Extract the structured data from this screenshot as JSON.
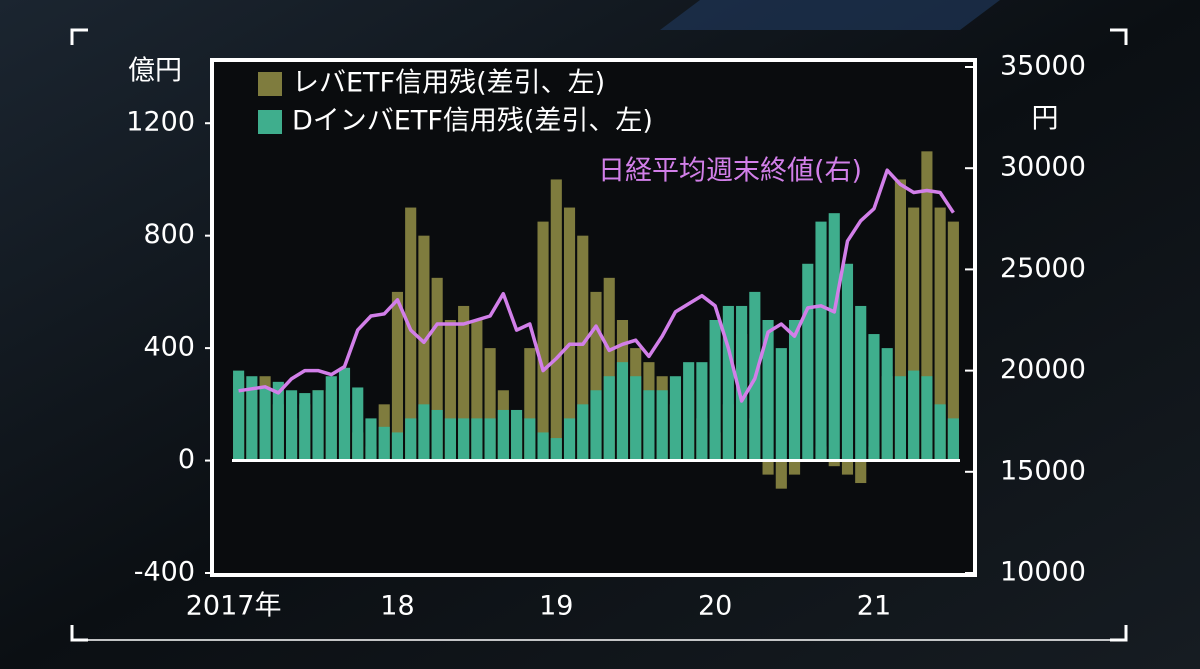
{
  "chart_data": {
    "type": "bar",
    "left_unit": "億円",
    "right_unit": "円",
    "categories": [
      "2017年",
      null,
      null,
      null,
      null,
      null,
      null,
      null,
      null,
      null,
      null,
      null,
      "18",
      null,
      null,
      null,
      null,
      null,
      null,
      null,
      null,
      null,
      null,
      null,
      "19",
      null,
      null,
      null,
      null,
      null,
      null,
      null,
      null,
      null,
      null,
      null,
      "20",
      null,
      null,
      null,
      null,
      null,
      null,
      null,
      null,
      null,
      null,
      null,
      "21",
      null,
      null,
      null,
      null,
      null,
      null
    ],
    "series": [
      {
        "name": "レバETF信用残(差引、左)",
        "color": "#7f7c3e",
        "values": [
          300,
          250,
          300,
          200,
          150,
          200,
          250,
          250,
          200,
          100,
          50,
          200,
          600,
          900,
          800,
          650,
          500,
          550,
          500,
          400,
          250,
          150,
          400,
          850,
          1000,
          900,
          800,
          600,
          650,
          500,
          400,
          350,
          300,
          200,
          250,
          150,
          100,
          200,
          450,
          150,
          -50,
          -100,
          -50,
          0,
          50,
          -20,
          -50,
          -80,
          50,
          300,
          1000,
          900,
          1100,
          900,
          850
        ]
      },
      {
        "name": "DインバETF信用残(差引、左)",
        "color": "#3fae8d",
        "values": [
          320,
          300,
          260,
          280,
          250,
          240,
          250,
          300,
          330,
          260,
          150,
          120,
          100,
          150,
          200,
          180,
          150,
          150,
          150,
          150,
          180,
          180,
          150,
          100,
          80,
          150,
          200,
          250,
          300,
          350,
          300,
          250,
          250,
          300,
          350,
          350,
          500,
          550,
          550,
          600,
          500,
          400,
          500,
          700,
          850,
          880,
          700,
          550,
          450,
          400,
          300,
          320,
          300,
          200,
          150
        ]
      },
      {
        "name": "日経平均週末終値(右)",
        "color": "#d27fe9",
        "axis": "y2",
        "type": "line",
        "values": [
          19000,
          19100,
          19200,
          18900,
          19600,
          20000,
          20000,
          19800,
          20200,
          22000,
          22700,
          22800,
          23500,
          22000,
          21400,
          22300,
          22300,
          22300,
          22500,
          22700,
          23800,
          22000,
          22300,
          20000,
          20600,
          21300,
          21300,
          22200,
          21000,
          21300,
          21500,
          20700,
          21700,
          22900,
          23300,
          23700,
          23200,
          21100,
          18500,
          19600,
          21900,
          22300,
          21700,
          23100,
          23200,
          22900,
          26400,
          27400,
          28000,
          29900,
          29200,
          28800,
          28900,
          28800,
          27800
        ]
      }
    ],
    "ylim": [
      -400,
      1400
    ],
    "yticks": [
      -400,
      0,
      400,
      800,
      1200
    ],
    "y2lim": [
      10000,
      35000
    ],
    "y2ticks": [
      10000,
      15000,
      20000,
      25000,
      30000,
      35000
    ]
  }
}
